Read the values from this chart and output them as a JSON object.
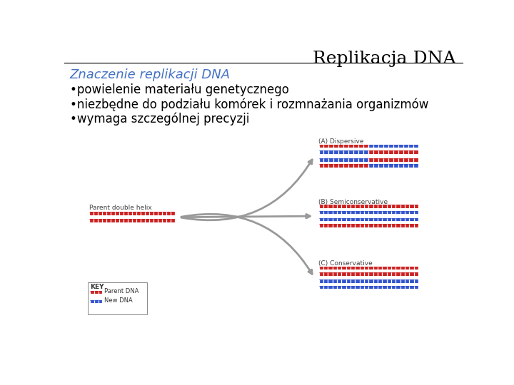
{
  "title": "Replikacja DNA",
  "title_color": "#000000",
  "title_fontsize": 18,
  "subtitle": "Znaczenie replikacji DNA",
  "subtitle_color": "#4472C4",
  "subtitle_fontsize": 13,
  "bullets": [
    "•powielenie materiału genetycznego",
    "•niezbędne do podziału komórek i rozmnażania organizmów",
    "•wymaga szczególnej precyzji"
  ],
  "bullet_fontsize": 12,
  "bullet_color": "#000000",
  "background_color": "#ffffff",
  "dna_red": "#CC2222",
  "dna_blue": "#3355CC",
  "parent_label": "Parent double helix",
  "section_labels": [
    "(A) Dispersive",
    "(B) Semiconservative",
    "(C) Conservative"
  ],
  "key_label": "KEY",
  "key_parent": "Parent DNA",
  "key_new": "New DNA",
  "arrow_color": "#999999",
  "label_color": "#444444"
}
